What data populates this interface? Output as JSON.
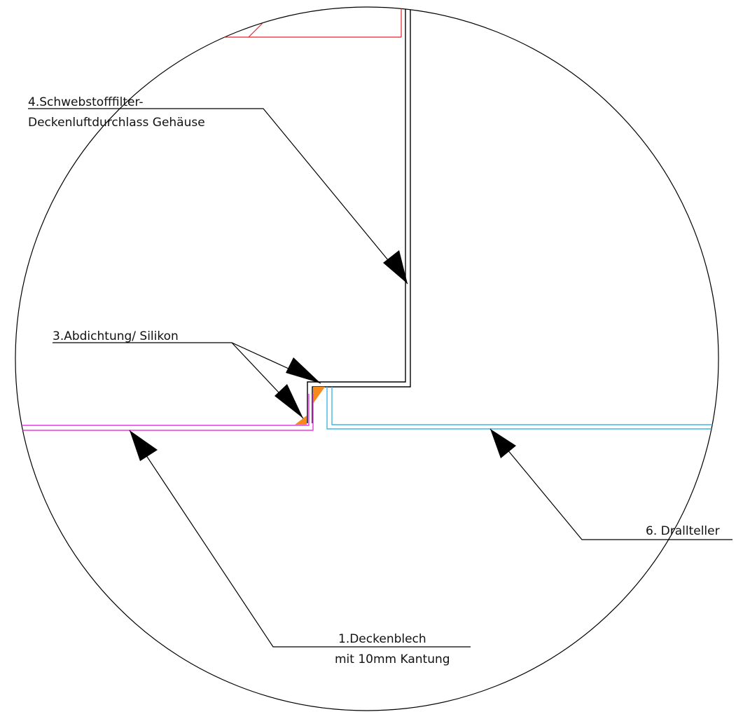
{
  "labels": {
    "housing_line1": "4.Schwebstofffilter-",
    "housing_line2": "Deckenluftdurchlass Gehäuse",
    "sealing": "3.Abdichtung/ Silikon",
    "ceiling_line1": "1.Deckenblech",
    "ceiling_line2": "mit 10mm Kantung",
    "swirl_plate": "6. Drallteller"
  },
  "colors": {
    "outline": "#000000",
    "housing": "#000000",
    "ceiling_sheet": "#e83be0",
    "swirl_plate": "#3fb8e0",
    "sealant": "#f58a1f",
    "reference": "#e8222a"
  }
}
